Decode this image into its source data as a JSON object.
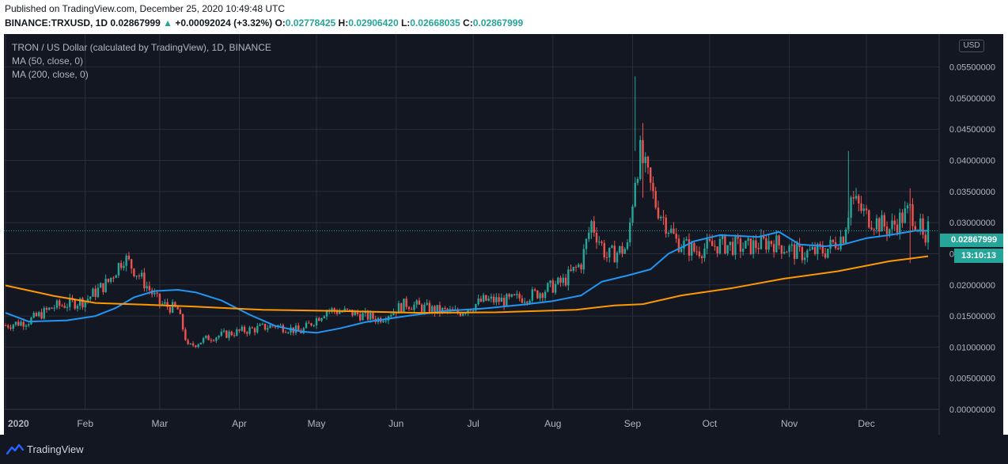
{
  "header": {
    "published": "Published on TradingView.com, December 25, 2020 10:49:48 UTC",
    "symbol": "BINANCE:TRXUSD, 1D",
    "last": "0.02867999",
    "change_arrow": "▲",
    "change": "+0.00092024 (+3.32%)",
    "o_label": "O:",
    "o_value": "0.02778425",
    "h_label": "H:",
    "h_value": "0.02906420",
    "l_label": "L:",
    "l_value": "0.02668035",
    "c_label": "C:",
    "c_value": "0.02867999"
  },
  "legend": {
    "title": "TRON / US Dollar (calculated by TradingView), 1D, BINANCE",
    "ma50": "MA (50, close, 0)",
    "ma200": "MA (200, close, 0)"
  },
  "currency": "USD",
  "price_label": "0.02867999",
  "countdown": "13:10:13",
  "footer": {
    "brand": "TradingView"
  },
  "colors": {
    "up": "#26a69a",
    "down": "#ef5350",
    "ma50": "#2196f3",
    "ma200": "#ff9800",
    "background": "#131722",
    "grid": "#2a2e39"
  },
  "chart_data": {
    "type": "candlestick",
    "x_axis_labels": [
      "2020",
      "Feb",
      "Mar",
      "Apr",
      "May",
      "Jun",
      "Jul",
      "Aug",
      "Sep",
      "Oct",
      "Nov",
      "Dec"
    ],
    "y_axis_labels": [
      "0.05500000",
      "0.05000000",
      "0.04500000",
      "0.04000000",
      "0.03500000",
      "0.03000000",
      "0.02500000",
      "0.02000000",
      "0.01500000",
      "0.01000000",
      "0.00500000",
      "0.00000000"
    ],
    "y_range": [
      0,
      0.058
    ],
    "last_price": 0.02867999,
    "series": [
      {
        "name": "MA (50, close, 0)",
        "color": "#2196f3",
        "points": [
          [
            "2020-01-01",
            0.0155
          ],
          [
            "2020-01-10",
            0.0141
          ],
          [
            "2020-01-25",
            0.0143
          ],
          [
            "2020-02-05",
            0.015
          ],
          [
            "2020-02-13",
            0.0163
          ],
          [
            "2020-02-20",
            0.018
          ],
          [
            "2020-02-28",
            0.019
          ],
          [
            "2020-03-08",
            0.0192
          ],
          [
            "2020-03-15",
            0.0188
          ],
          [
            "2020-03-25",
            0.0175
          ],
          [
            "2020-04-05",
            0.0152
          ],
          [
            "2020-04-15",
            0.0134
          ],
          [
            "2020-04-25",
            0.0125
          ],
          [
            "2020-05-01",
            0.0123
          ],
          [
            "2020-05-10",
            0.013
          ],
          [
            "2020-05-20",
            0.014
          ],
          [
            "2020-06-05",
            0.015
          ],
          [
            "2020-06-20",
            0.0158
          ],
          [
            "2020-07-05",
            0.0162
          ],
          [
            "2020-07-20",
            0.0168
          ],
          [
            "2020-08-01",
            0.0174
          ],
          [
            "2020-08-12",
            0.0183
          ],
          [
            "2020-08-20",
            0.0205
          ],
          [
            "2020-08-30",
            0.0215
          ],
          [
            "2020-09-08",
            0.0225
          ],
          [
            "2020-09-15",
            0.025
          ],
          [
            "2020-09-25",
            0.027
          ],
          [
            "2020-10-05",
            0.028
          ],
          [
            "2020-10-20",
            0.0277
          ],
          [
            "2020-10-28",
            0.0285
          ],
          [
            "2020-11-05",
            0.0265
          ],
          [
            "2020-11-15",
            0.0262
          ],
          [
            "2020-11-22",
            0.0265
          ],
          [
            "2020-12-01",
            0.0275
          ],
          [
            "2020-12-10",
            0.028
          ],
          [
            "2020-12-20",
            0.0287
          ],
          [
            "2020-12-25",
            0.0287
          ]
        ]
      },
      {
        "name": "MA (200, close, 0)",
        "color": "#ff9800",
        "points": [
          [
            "2020-01-01",
            0.0199
          ],
          [
            "2020-01-20",
            0.0182
          ],
          [
            "2020-02-05",
            0.0171
          ],
          [
            "2020-02-25",
            0.0168
          ],
          [
            "2020-03-15",
            0.0165
          ],
          [
            "2020-04-10",
            0.016
          ],
          [
            "2020-05-10",
            0.0158
          ],
          [
            "2020-06-10",
            0.0155
          ],
          [
            "2020-07-10",
            0.0156
          ],
          [
            "2020-08-10",
            0.016
          ],
          [
            "2020-08-25",
            0.0167
          ],
          [
            "2020-09-05",
            0.0169
          ],
          [
            "2020-09-20",
            0.0183
          ],
          [
            "2020-10-10",
            0.0195
          ],
          [
            "2020-10-30",
            0.021
          ],
          [
            "2020-11-20",
            0.0222
          ],
          [
            "2020-12-10",
            0.0238
          ],
          [
            "2020-12-25",
            0.0246
          ]
        ]
      },
      {
        "name": "TRX/USD close",
        "color": "#26a69a",
        "points": [
          [
            "2020-01-01",
            0.0135
          ],
          [
            "2020-01-10",
            0.0142
          ],
          [
            "2020-01-20",
            0.0165
          ],
          [
            "2020-02-01",
            0.0175
          ],
          [
            "2020-02-10",
            0.0205
          ],
          [
            "2020-02-16",
            0.0245
          ],
          [
            "2020-02-22",
            0.0215
          ],
          [
            "2020-03-01",
            0.017
          ],
          [
            "2020-03-08",
            0.016
          ],
          [
            "2020-03-12",
            0.01
          ],
          [
            "2020-03-20",
            0.0115
          ],
          [
            "2020-04-01",
            0.0125
          ],
          [
            "2020-04-15",
            0.0135
          ],
          [
            "2020-04-25",
            0.0125
          ],
          [
            "2020-05-05",
            0.016
          ],
          [
            "2020-05-15",
            0.0155
          ],
          [
            "2020-05-25",
            0.0145
          ],
          [
            "2020-06-05",
            0.017
          ],
          [
            "2020-06-15",
            0.016
          ],
          [
            "2020-06-25",
            0.0155
          ],
          [
            "2020-07-05",
            0.0175
          ],
          [
            "2020-07-15",
            0.0175
          ],
          [
            "2020-07-25",
            0.0185
          ],
          [
            "2020-08-05",
            0.0205
          ],
          [
            "2020-08-12",
            0.0235
          ],
          [
            "2020-08-16",
            0.03
          ],
          [
            "2020-08-22",
            0.0245
          ],
          [
            "2020-08-30",
            0.026
          ],
          [
            "2020-09-02",
            0.0375
          ],
          [
            "2020-09-04",
            0.041
          ],
          [
            "2020-09-10",
            0.033
          ],
          [
            "2020-09-18",
            0.027
          ],
          [
            "2020-09-25",
            0.0255
          ],
          [
            "2020-10-05",
            0.0265
          ],
          [
            "2020-10-15",
            0.026
          ],
          [
            "2020-10-25",
            0.027
          ],
          [
            "2020-11-05",
            0.025
          ],
          [
            "2020-11-15",
            0.0255
          ],
          [
            "2020-11-22",
            0.028
          ],
          [
            "2020-11-25",
            0.034
          ],
          [
            "2020-12-01",
            0.031
          ],
          [
            "2020-12-10",
            0.029
          ],
          [
            "2020-12-18",
            0.032
          ],
          [
            "2020-12-22",
            0.029
          ],
          [
            "2020-12-24",
            0.0255
          ],
          [
            "2020-12-25",
            0.0287
          ]
        ]
      }
    ]
  }
}
